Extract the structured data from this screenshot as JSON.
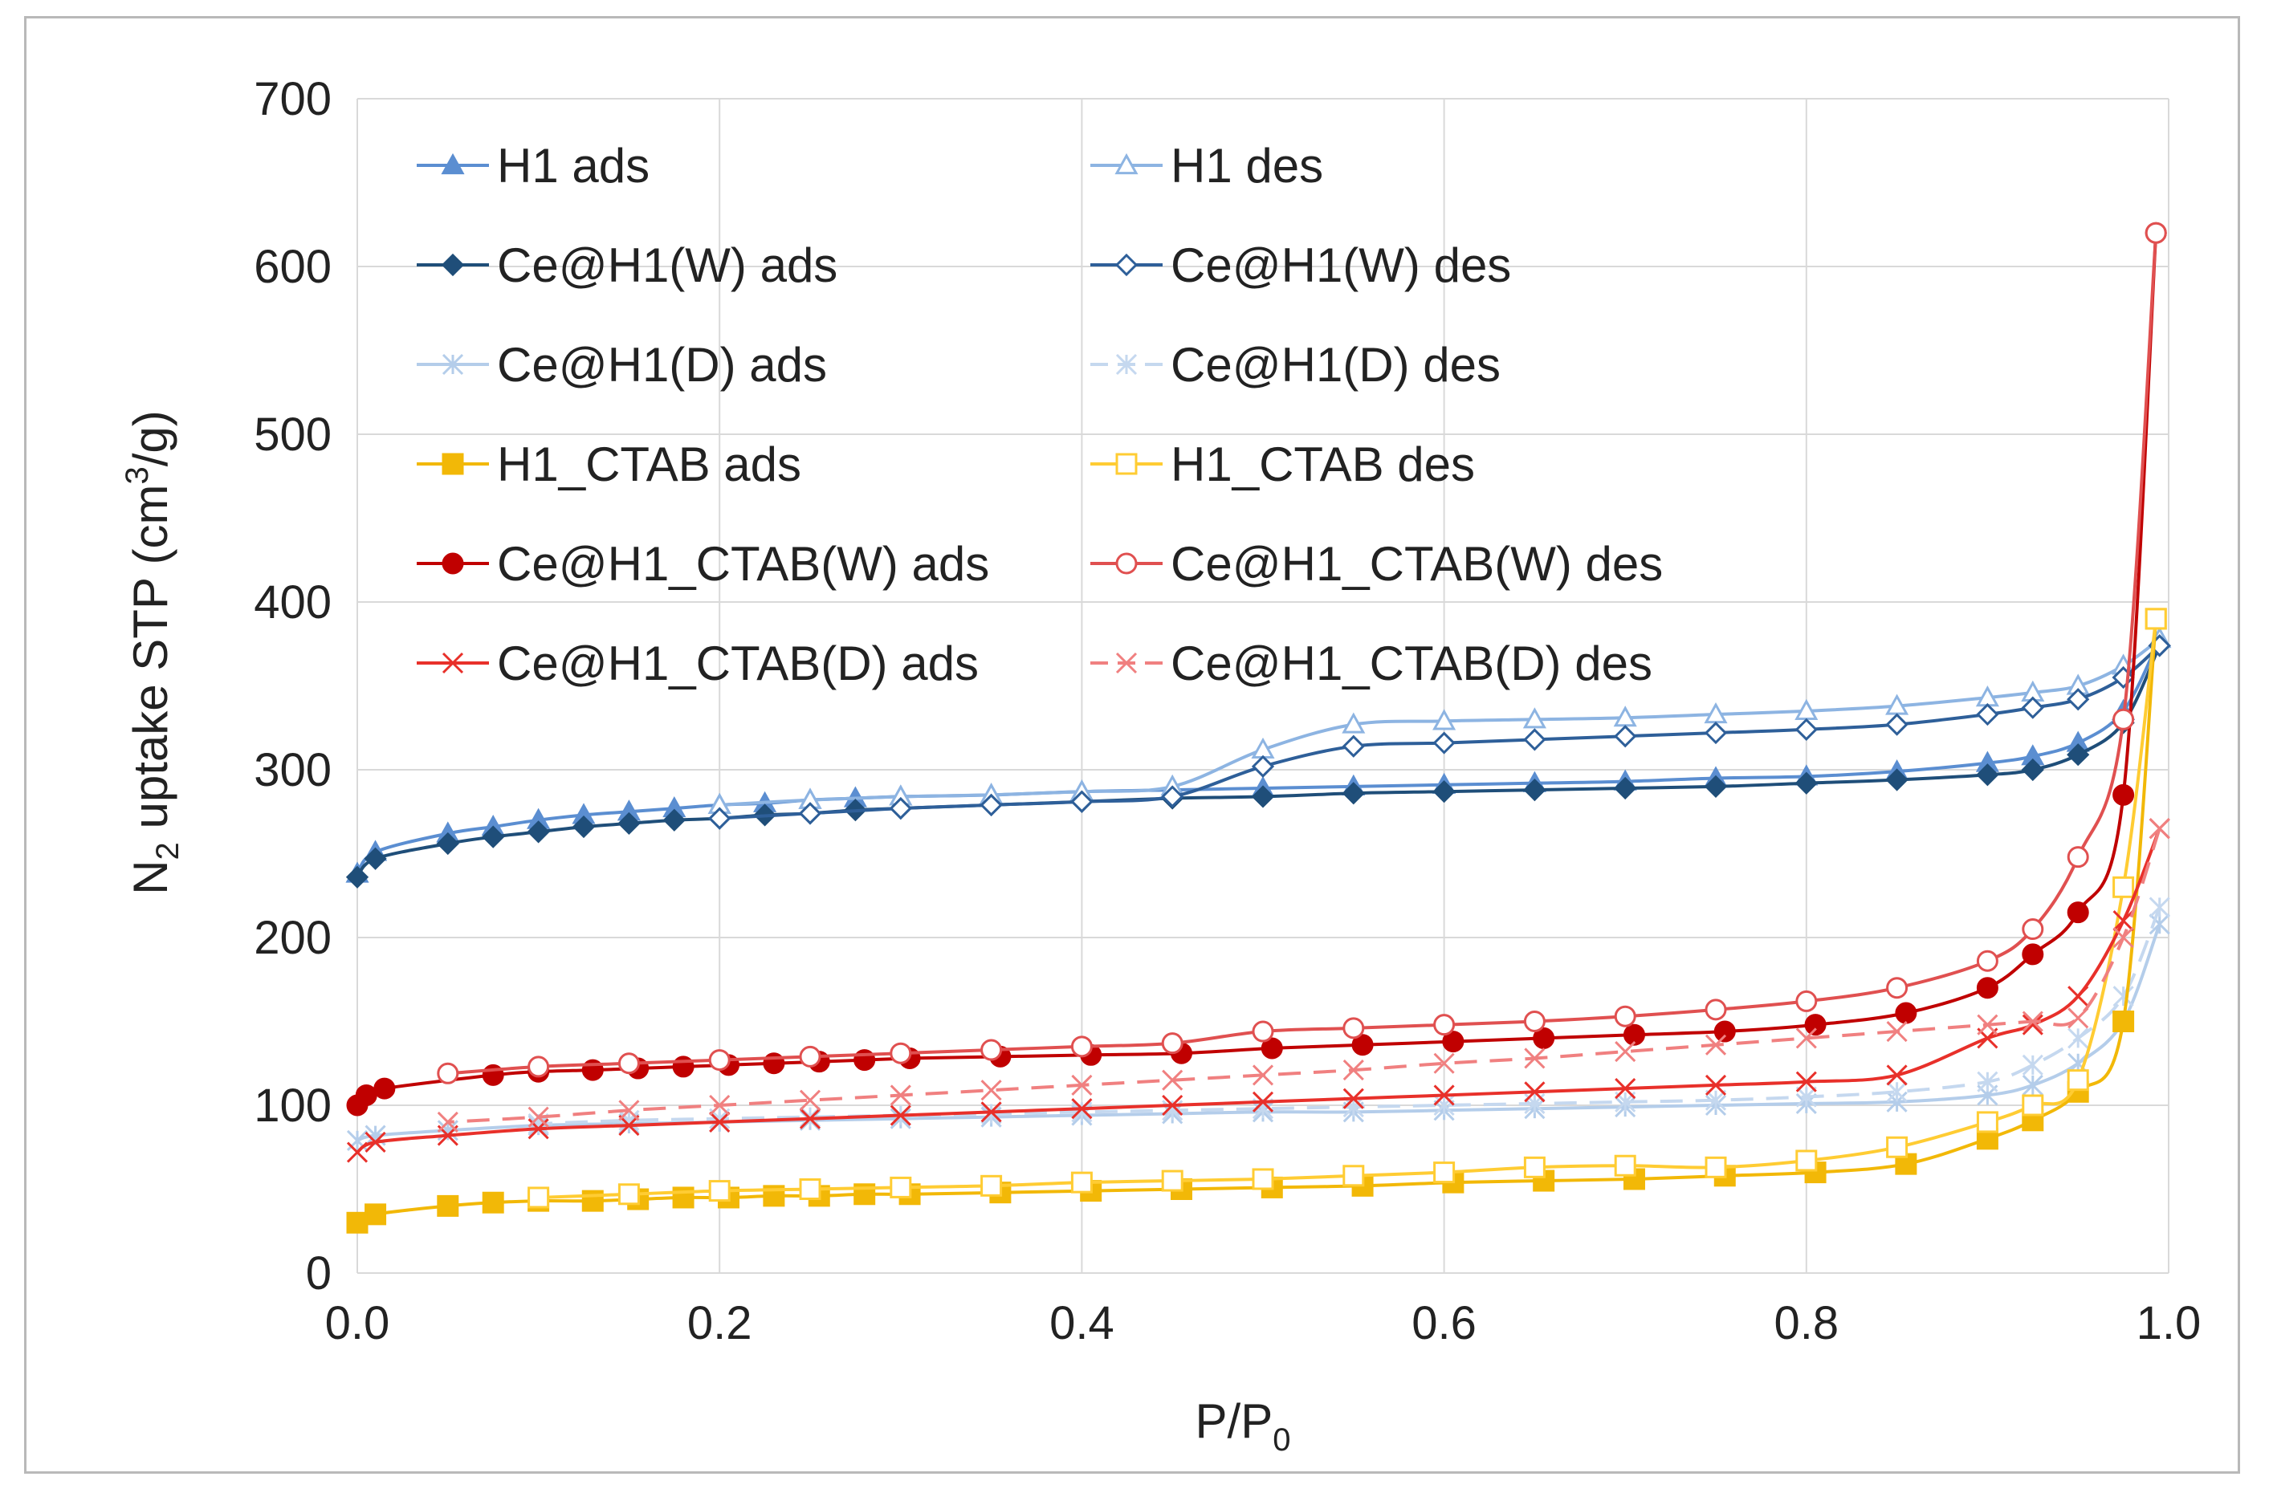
{
  "chart_data": {
    "type": "line",
    "title": "",
    "xlabel": "P/P0",
    "xlabel_main": "P/P",
    "xlabel_sub": "0",
    "ylabel": "N2 uptake STP (cm3/g)",
    "ylabel_parts": {
      "a": "N",
      "a_sub": "2",
      "b": " uptake STP (cm",
      "b_sup": "3",
      "c": "/g)"
    },
    "xlim": [
      0,
      1
    ],
    "ylim": [
      0,
      700
    ],
    "xticks": [
      "0.0",
      "0.2",
      "0.4",
      "0.6",
      "0.8",
      "1.0"
    ],
    "yticks": [
      "0",
      "100",
      "200",
      "300",
      "400",
      "500",
      "600",
      "700"
    ],
    "grid": true,
    "legend_position": "top-left, two columns",
    "series": [
      {
        "name": "H1 ads",
        "color": "#5b8ed1",
        "marker": "triangle-filled",
        "dash": "solid",
        "x": [
          0.0,
          0.01,
          0.05,
          0.075,
          0.1,
          0.125,
          0.15,
          0.175,
          0.2,
          0.225,
          0.25,
          0.275,
          0.3,
          0.35,
          0.4,
          0.45,
          0.5,
          0.55,
          0.6,
          0.65,
          0.7,
          0.75,
          0.8,
          0.85,
          0.9,
          0.925,
          0.95,
          0.975,
          0.995
        ],
        "y": [
          238,
          251,
          262,
          266,
          270,
          273,
          275,
          277,
          279,
          280,
          282,
          283,
          284,
          285,
          287,
          288,
          289,
          290,
          291,
          292,
          293,
          295,
          296,
          299,
          304,
          308,
          316,
          335,
          378
        ]
      },
      {
        "name": "H1 des",
        "color": "#8db4e2",
        "marker": "triangle-open",
        "dash": "solid",
        "x": [
          0.995,
          0.975,
          0.95,
          0.925,
          0.9,
          0.85,
          0.8,
          0.75,
          0.7,
          0.65,
          0.6,
          0.55,
          0.5,
          0.45,
          0.4,
          0.35,
          0.3,
          0.25,
          0.2
        ],
        "y": [
          378,
          362,
          350,
          346,
          343,
          338,
          335,
          333,
          331,
          330,
          329,
          327,
          312,
          290,
          287,
          285,
          284,
          282,
          279
        ]
      },
      {
        "name": "Ce@H1(W) ads",
        "color": "#1f4e79",
        "marker": "diamond-filled",
        "dash": "solid",
        "x": [
          0.0,
          0.01,
          0.05,
          0.075,
          0.1,
          0.125,
          0.15,
          0.175,
          0.2,
          0.225,
          0.25,
          0.275,
          0.3,
          0.35,
          0.4,
          0.45,
          0.5,
          0.55,
          0.6,
          0.65,
          0.7,
          0.75,
          0.8,
          0.85,
          0.9,
          0.925,
          0.95,
          0.975,
          0.995
        ],
        "y": [
          236,
          247,
          256,
          260,
          263,
          266,
          268,
          270,
          271,
          273,
          274,
          276,
          277,
          279,
          281,
          283,
          284,
          286,
          287,
          288,
          289,
          290,
          292,
          294,
          297,
          300,
          309,
          328,
          374
        ]
      },
      {
        "name": "Ce@H1(W) des",
        "color": "#2e5f99",
        "marker": "diamond-open",
        "dash": "solid",
        "x": [
          0.995,
          0.975,
          0.95,
          0.925,
          0.9,
          0.85,
          0.8,
          0.75,
          0.7,
          0.65,
          0.6,
          0.55,
          0.5,
          0.45,
          0.4,
          0.35,
          0.3,
          0.25,
          0.2
        ],
        "y": [
          374,
          355,
          342,
          337,
          333,
          327,
          324,
          322,
          320,
          318,
          316,
          314,
          302,
          284,
          281,
          279,
          277,
          274,
          271
        ]
      },
      {
        "name": "Ce@H1(D) ads",
        "color": "#b4cdea",
        "marker": "star",
        "dash": "solid",
        "x": [
          0.0,
          0.01,
          0.05,
          0.1,
          0.15,
          0.2,
          0.25,
          0.3,
          0.35,
          0.4,
          0.45,
          0.5,
          0.55,
          0.6,
          0.65,
          0.7,
          0.75,
          0.8,
          0.85,
          0.9,
          0.925,
          0.95,
          0.975,
          0.995
        ],
        "y": [
          79,
          82,
          85,
          88,
          89,
          90,
          91,
          92,
          93,
          94,
          95,
          96,
          96,
          97,
          98,
          99,
          100,
          101,
          102,
          106,
          112,
          125,
          150,
          208
        ]
      },
      {
        "name": "Ce@H1(D) des",
        "color": "#c5d8ef",
        "marker": "star",
        "dash": "dashed",
        "x": [
          0.995,
          0.975,
          0.95,
          0.925,
          0.9,
          0.85,
          0.8,
          0.75,
          0.7,
          0.65,
          0.6,
          0.55,
          0.5,
          0.45,
          0.4,
          0.35,
          0.3,
          0.25,
          0.2,
          0.15,
          0.1
        ],
        "y": [
          218,
          165,
          140,
          124,
          114,
          108,
          105,
          103,
          102,
          101,
          100,
          99,
          98,
          97,
          96,
          95,
          94,
          93,
          92,
          91,
          89
        ]
      },
      {
        "name": "H1_CTAB ads",
        "color": "#f2b807",
        "marker": "square-filled",
        "dash": "solid",
        "x": [
          0.0,
          0.01,
          0.05,
          0.075,
          0.1,
          0.13,
          0.155,
          0.18,
          0.205,
          0.23,
          0.255,
          0.28,
          0.305,
          0.355,
          0.405,
          0.455,
          0.505,
          0.555,
          0.605,
          0.655,
          0.705,
          0.755,
          0.805,
          0.855,
          0.9,
          0.925,
          0.95,
          0.975,
          0.993
        ],
        "y": [
          30,
          35,
          40,
          42,
          43,
          43,
          44,
          45,
          45,
          46,
          46,
          47,
          47,
          48,
          49,
          50,
          51,
          52,
          54,
          55,
          56,
          58,
          60,
          65,
          80,
          91,
          108,
          150,
          390
        ]
      },
      {
        "name": "H1_CTAB des",
        "color": "#ffcc33",
        "marker": "square-open",
        "dash": "solid",
        "x": [
          0.993,
          0.975,
          0.95,
          0.925,
          0.9,
          0.85,
          0.8,
          0.75,
          0.7,
          0.65,
          0.6,
          0.55,
          0.5,
          0.45,
          0.4,
          0.35,
          0.3,
          0.25,
          0.2,
          0.15,
          0.1
        ],
        "y": [
          390,
          230,
          115,
          100,
          90,
          75,
          67,
          63,
          64,
          63,
          60,
          58,
          56,
          55,
          54,
          52,
          51,
          50,
          49,
          47,
          45
        ]
      },
      {
        "name": "Ce@H1_CTAB(W) ads",
        "color": "#c00000",
        "marker": "circle-filled",
        "dash": "solid",
        "x": [
          0.0,
          0.005,
          0.015,
          0.075,
          0.1,
          0.13,
          0.155,
          0.18,
          0.205,
          0.23,
          0.255,
          0.28,
          0.305,
          0.355,
          0.405,
          0.455,
          0.505,
          0.555,
          0.605,
          0.655,
          0.705,
          0.755,
          0.805,
          0.855,
          0.9,
          0.925,
          0.95,
          0.975,
          0.993
        ],
        "y": [
          100,
          106,
          110,
          118,
          120,
          121,
          122,
          123,
          124,
          125,
          126,
          127,
          128,
          129,
          130,
          131,
          134,
          136,
          138,
          140,
          142,
          144,
          148,
          155,
          170,
          190,
          215,
          285,
          620
        ]
      },
      {
        "name": "Ce@H1_CTAB(W) des",
        "color": "#e05050",
        "marker": "circle-open",
        "dash": "solid",
        "x": [
          0.993,
          0.975,
          0.95,
          0.925,
          0.9,
          0.85,
          0.8,
          0.75,
          0.7,
          0.65,
          0.6,
          0.55,
          0.5,
          0.45,
          0.4,
          0.35,
          0.3,
          0.25,
          0.2,
          0.15,
          0.1,
          0.05
        ],
        "y": [
          620,
          330,
          248,
          205,
          186,
          170,
          162,
          157,
          153,
          150,
          148,
          146,
          144,
          137,
          135,
          133,
          131,
          129,
          127,
          125,
          123,
          119
        ]
      },
      {
        "name": "Ce@H1_CTAB(D) ads",
        "color": "#e8302a",
        "marker": "x",
        "dash": "solid",
        "x": [
          0.0,
          0.01,
          0.05,
          0.1,
          0.15,
          0.2,
          0.25,
          0.3,
          0.35,
          0.4,
          0.45,
          0.5,
          0.55,
          0.6,
          0.65,
          0.7,
          0.75,
          0.8,
          0.85,
          0.9,
          0.925,
          0.95,
          0.975,
          0.995
        ],
        "y": [
          72,
          78,
          82,
          86,
          88,
          90,
          92,
          94,
          96,
          98,
          100,
          102,
          104,
          106,
          108,
          110,
          112,
          114,
          118,
          140,
          148,
          165,
          210,
          265
        ]
      },
      {
        "name": "Ce@H1_CTAB(D) des",
        "color": "#f08080",
        "marker": "x",
        "dash": "dashed",
        "x": [
          0.995,
          0.975,
          0.95,
          0.925,
          0.9,
          0.85,
          0.8,
          0.75,
          0.7,
          0.65,
          0.6,
          0.55,
          0.5,
          0.45,
          0.4,
          0.35,
          0.3,
          0.25,
          0.2,
          0.15,
          0.1,
          0.05
        ],
        "y": [
          265,
          200,
          152,
          150,
          148,
          144,
          140,
          136,
          132,
          128,
          125,
          121,
          118,
          115,
          112,
          109,
          106,
          103,
          100,
          97,
          93,
          90
        ]
      }
    ]
  }
}
